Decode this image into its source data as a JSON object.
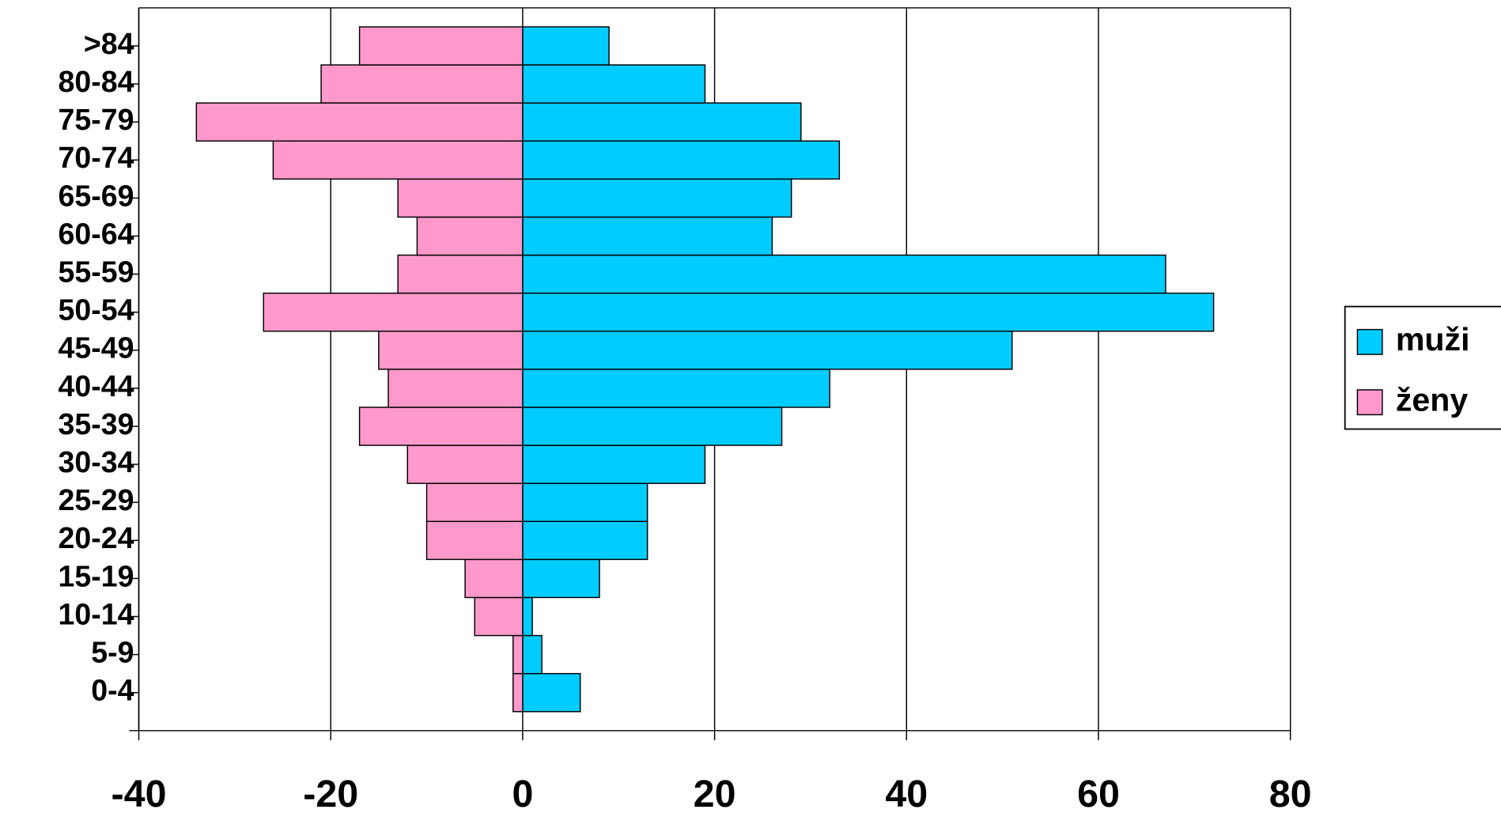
{
  "chart_data": {
    "type": "bar",
    "orientation": "horizontal",
    "categories": [
      "0-4",
      "5-9",
      "10-14",
      "15-19",
      "20-24",
      "25-29",
      "30-34",
      "35-39",
      "40-44",
      "45-49",
      "50-54",
      "55-59",
      "60-64",
      "65-69",
      "70-74",
      "75-79",
      "80-84",
      ">84"
    ],
    "series": [
      {
        "name": "muži",
        "color": "#00ccff",
        "values": [
          6,
          2,
          1,
          8,
          13,
          13,
          19,
          27,
          32,
          51,
          72,
          67,
          26,
          28,
          33,
          29,
          19,
          9
        ]
      },
      {
        "name": "ženy",
        "color": "#ff99cc",
        "values": [
          -1,
          -1,
          -5,
          -6,
          -10,
          -10,
          -12,
          -17,
          -14,
          -15,
          -27,
          -13,
          -11,
          -13,
          -26,
          -34,
          -21,
          -17
        ]
      }
    ],
    "xlim": [
      -40,
      80
    ],
    "xticks": [
      -40,
      -20,
      0,
      20,
      40,
      60,
      80
    ],
    "grid": true,
    "legend": "right"
  }
}
